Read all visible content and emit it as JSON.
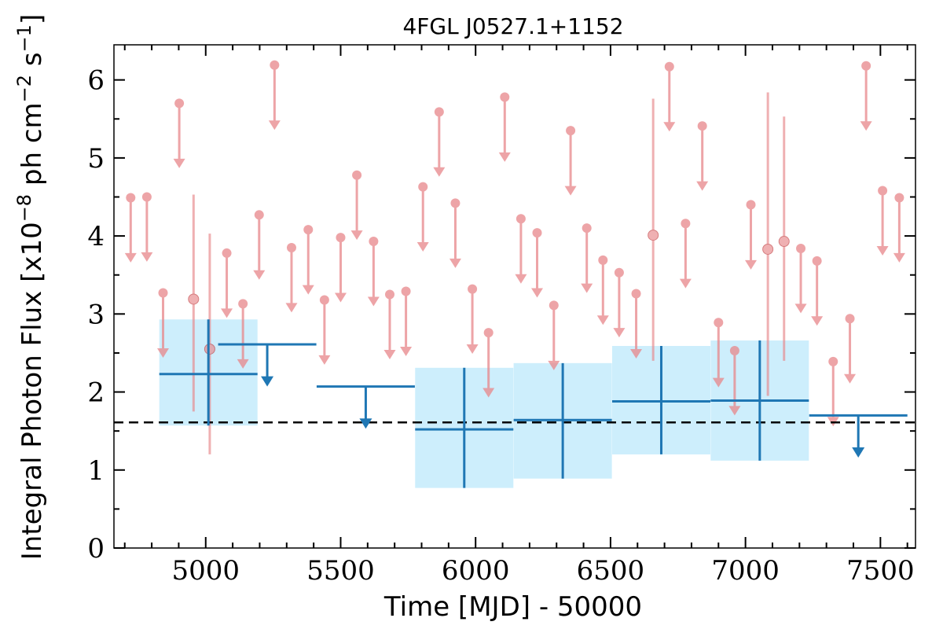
{
  "chart_data": {
    "type": "scatter",
    "title": "4FGL J0527.1+1152",
    "xlabel": "Time [MJD] - 50000",
    "ylabel": "Integral Photon Flux [x10",
    "ylabel_exp1": "−8",
    "ylabel_mid": " ph cm",
    "ylabel_exp2": "−2",
    "ylabel_mid2": " s",
    "ylabel_exp3": "−1",
    "ylabel_end": "]",
    "xlim": [
      4660,
      7630
    ],
    "ylim": [
      0,
      6.45
    ],
    "xticks": [
      5000,
      5500,
      6000,
      6500,
      7000,
      7500
    ],
    "yticks": [
      0,
      1,
      2,
      3,
      4,
      5,
      6
    ],
    "mean_flux": 1.61,
    "colors": {
      "binned": "#1f77b4",
      "binned_fill": "#cdeefc",
      "fine": "#e8868a",
      "mean_line": "#000000"
    },
    "binned_points": [
      {
        "x": 5010,
        "xerr": 182,
        "y": 2.23,
        "ylo": 1.57,
        "yhi": 2.93
      },
      {
        "x": 5958,
        "xerr": 182,
        "y": 1.52,
        "ylo": 0.77,
        "yhi": 2.31
      },
      {
        "x": 6323,
        "xerr": 182,
        "y": 1.64,
        "ylo": 0.89,
        "yhi": 2.37
      },
      {
        "x": 6688,
        "xerr": 182,
        "y": 1.88,
        "ylo": 1.2,
        "yhi": 2.59
      },
      {
        "x": 7053,
        "xerr": 182,
        "y": 1.89,
        "ylo": 1.12,
        "yhi": 2.66
      }
    ],
    "binned_upper_limits": [
      {
        "x": 5228,
        "xerr": 182,
        "y": 2.61
      },
      {
        "x": 5593,
        "xerr": 182,
        "y": 2.07
      },
      {
        "x": 7418,
        "xerr": 182,
        "y": 1.7
      }
    ],
    "fine_points": [
      {
        "x": 4955,
        "y": 3.19,
        "ylo": 1.75,
        "yhi": 4.53
      },
      {
        "x": 5015,
        "y": 2.55,
        "ylo": 1.2,
        "yhi": 4.03
      },
      {
        "x": 6658,
        "y": 4.01,
        "ylo": 2.4,
        "yhi": 5.76
      },
      {
        "x": 7083,
        "y": 3.83,
        "ylo": 1.95,
        "yhi": 5.84
      },
      {
        "x": 7143,
        "y": 3.93,
        "ylo": 2.4,
        "yhi": 5.53
      }
    ],
    "fine_upper_limits": [
      {
        "x": 4722,
        "y": 4.49
      },
      {
        "x": 4782,
        "y": 4.5
      },
      {
        "x": 4842,
        "y": 3.27
      },
      {
        "x": 4902,
        "y": 5.7
      },
      {
        "x": 5078,
        "y": 3.78
      },
      {
        "x": 5138,
        "y": 3.13
      },
      {
        "x": 5198,
        "y": 4.27
      },
      {
        "x": 5255,
        "y": 6.19
      },
      {
        "x": 5318,
        "y": 3.85
      },
      {
        "x": 5380,
        "y": 4.08
      },
      {
        "x": 5440,
        "y": 3.18
      },
      {
        "x": 5500,
        "y": 3.98
      },
      {
        "x": 5560,
        "y": 4.78
      },
      {
        "x": 5622,
        "y": 3.93
      },
      {
        "x": 5682,
        "y": 3.25
      },
      {
        "x": 5742,
        "y": 3.29
      },
      {
        "x": 5805,
        "y": 4.63
      },
      {
        "x": 5865,
        "y": 5.59
      },
      {
        "x": 5925,
        "y": 4.42
      },
      {
        "x": 5988,
        "y": 3.32
      },
      {
        "x": 6048,
        "y": 2.76
      },
      {
        "x": 6108,
        "y": 5.78
      },
      {
        "x": 6168,
        "y": 4.22
      },
      {
        "x": 6228,
        "y": 4.04
      },
      {
        "x": 6290,
        "y": 3.11
      },
      {
        "x": 6352,
        "y": 5.35
      },
      {
        "x": 6412,
        "y": 4.1
      },
      {
        "x": 6472,
        "y": 3.69
      },
      {
        "x": 6532,
        "y": 3.53
      },
      {
        "x": 6595,
        "y": 3.26
      },
      {
        "x": 6718,
        "y": 6.17
      },
      {
        "x": 6778,
        "y": 4.16
      },
      {
        "x": 6840,
        "y": 5.41
      },
      {
        "x": 6900,
        "y": 2.89
      },
      {
        "x": 6960,
        "y": 2.53
      },
      {
        "x": 7020,
        "y": 4.4
      },
      {
        "x": 7205,
        "y": 3.84
      },
      {
        "x": 7265,
        "y": 3.68
      },
      {
        "x": 7325,
        "y": 2.39
      },
      {
        "x": 7387,
        "y": 2.94
      },
      {
        "x": 7447,
        "y": 6.18
      },
      {
        "x": 7508,
        "y": 4.58
      },
      {
        "x": 7570,
        "y": 4.49
      }
    ]
  }
}
